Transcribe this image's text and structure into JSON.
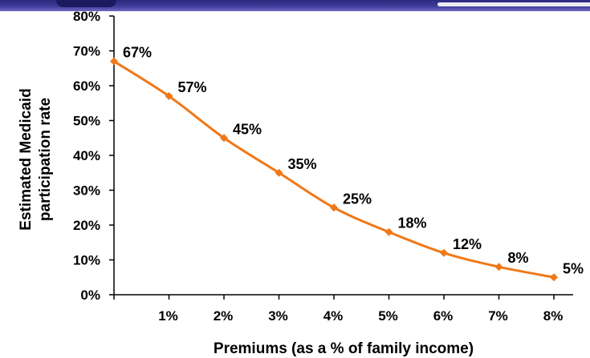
{
  "chart_data": {
    "type": "line",
    "title": "",
    "xlabel": "Premiums (as a % of family income)",
    "ylabel_lines": [
      "Estimated Medicaid",
      "participation rate"
    ],
    "x": [
      0,
      1,
      2,
      3,
      4,
      5,
      6,
      7,
      8
    ],
    "x_tick_labels": [
      "1%",
      "2%",
      "3%",
      "4%",
      "5%",
      "6%",
      "7%",
      "8%"
    ],
    "xlim": [
      0,
      8.35
    ],
    "y_ticks": [
      0,
      10,
      20,
      30,
      40,
      50,
      60,
      70,
      80
    ],
    "y_tick_labels": [
      "0%",
      "10%",
      "20%",
      "30%",
      "40%",
      "50%",
      "60%",
      "70%",
      "80%"
    ],
    "ylim": [
      0,
      80
    ],
    "series": [
      {
        "values": [
          67,
          57,
          45,
          35,
          25,
          18,
          12,
          8,
          5
        ],
        "labels": [
          "67%",
          "57%",
          "45%",
          "35%",
          "25%",
          "18%",
          "12%",
          "8%",
          "5%"
        ],
        "color": "#f07818",
        "marker": "diamond"
      }
    ],
    "grid": false,
    "legend": "none"
  },
  "colors": {
    "line": "#f07818",
    "axis": "#000000",
    "header_band": "#2c2a7d"
  }
}
